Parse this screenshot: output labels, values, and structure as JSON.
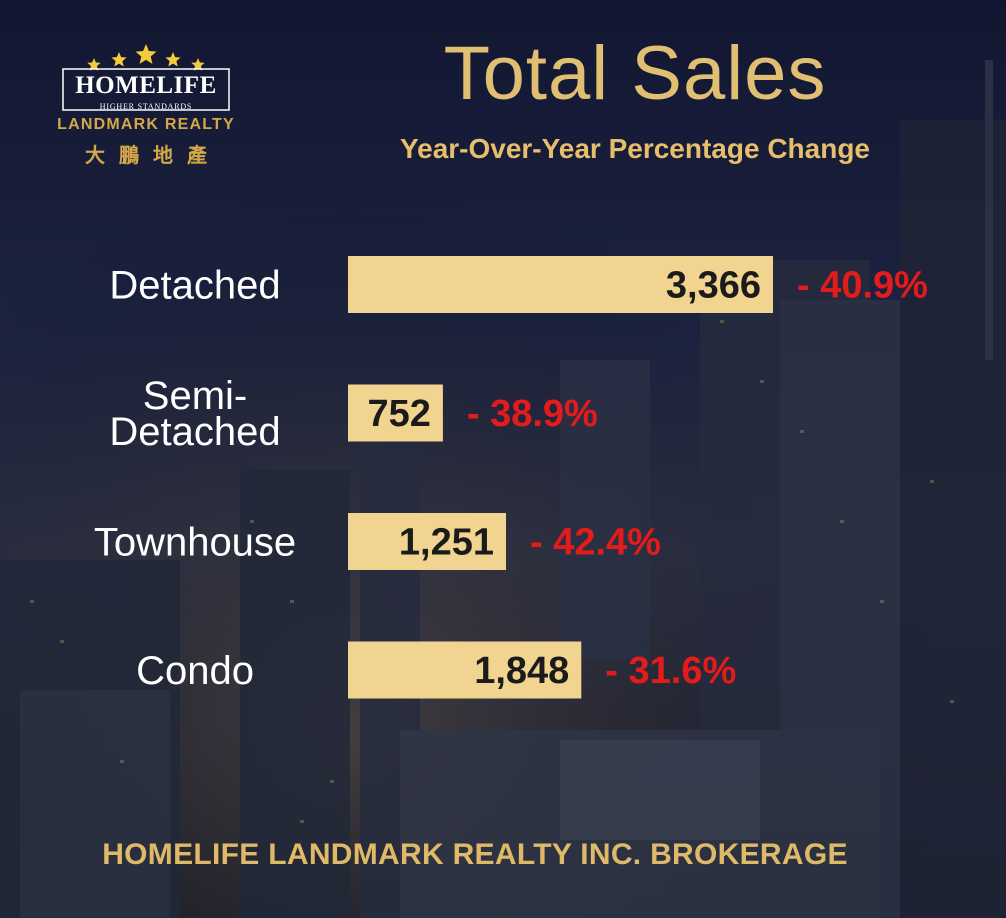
{
  "logo": {
    "wordmark": "HOMELIFE",
    "tagline": "HIGHER STANDARDS",
    "company": "LANDMARK REALTY",
    "chinese": "大鵬地產",
    "star_color": "#f2cc3a"
  },
  "footer": {
    "text": "HOMELIFE LANDMARK REALTY INC. BROKERAGE"
  },
  "colors": {
    "bar": "#f2d491",
    "bar_text": "#1b1b1b",
    "label": "#ffffff",
    "change": "#e31b1b",
    "title": "#e0bf73"
  },
  "chart_data": {
    "type": "bar",
    "orientation": "horizontal",
    "title": "Total Sales",
    "subtitle": "Year-Over-Year Percentage Change",
    "categories": [
      "Detached",
      "Semi-\nDetached",
      "Townhouse",
      "Condo"
    ],
    "values": [
      3366,
      752,
      1251,
      1848
    ],
    "value_labels": [
      "3,366",
      "752",
      "1,251",
      "1,848"
    ],
    "changes": [
      "- 40.9%",
      "- 38.9%",
      "- 42.4%",
      "- 31.6%"
    ],
    "xlabel": "",
    "ylabel": "",
    "xlim": [
      0,
      3366
    ],
    "grid": false,
    "legend": "none"
  }
}
